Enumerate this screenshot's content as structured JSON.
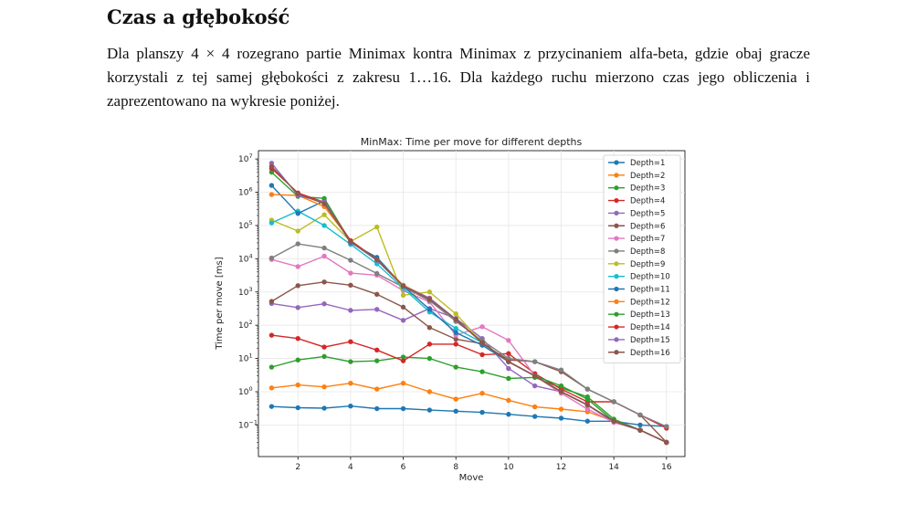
{
  "section": {
    "title": "Czas a głębokość",
    "paragraph": "Dla planszy 4 × 4 rozegrano partie Minimax kontra Minimax z przycinaniem alfa-beta, gdzie obaj gracze korzystali z tej samej głębokości z zakresu 1…16. Dla każdego ruchu mierzono czas jego obliczenia i zaprezentowano na wykresie poniżej."
  },
  "chart_data": {
    "type": "line",
    "title": "MinMax: Time per move for different depths",
    "xlabel": "Move",
    "ylabel": "Time per move [ms]",
    "yscale": "log",
    "xlim": [
      0.5,
      16.7
    ],
    "ylim_exp": [
      -1.95,
      7.25
    ],
    "xticks": [
      "2",
      "4",
      "6",
      "8",
      "10",
      "12",
      "14",
      "16"
    ],
    "yticks": [
      {
        "base": "10",
        "exp": "7"
      },
      {
        "base": "10",
        "exp": "6"
      },
      {
        "base": "10",
        "exp": "5"
      },
      {
        "base": "10",
        "exp": "4"
      },
      {
        "base": "10",
        "exp": "3"
      },
      {
        "base": "10",
        "exp": "2"
      },
      {
        "base": "10",
        "exp": "1"
      },
      {
        "base": "10",
        "exp": "0"
      },
      {
        "base": "10",
        "exp": "−1"
      }
    ],
    "grid": true,
    "legend_position": "top-right",
    "series": [
      {
        "name": "Depth=1",
        "color": "#1f77b4",
        "x": [
          1,
          2,
          3,
          4,
          5,
          6,
          7,
          8,
          9,
          10,
          11,
          12,
          13,
          14,
          15,
          16
        ],
        "y": [
          0.36,
          0.33,
          0.32,
          0.37,
          0.31,
          0.31,
          0.28,
          0.26,
          0.24,
          0.21,
          0.18,
          0.16,
          0.13,
          0.13,
          0.1,
          0.09
        ]
      },
      {
        "name": "Depth=2",
        "color": "#ff7f0e",
        "x": [
          1,
          2,
          3,
          4,
          5,
          6,
          7,
          8,
          9,
          10,
          11,
          12,
          13,
          14,
          15,
          16
        ],
        "y": [
          1.3,
          1.6,
          1.4,
          1.8,
          1.2,
          1.8,
          1.0,
          0.6,
          0.9,
          0.55,
          0.35,
          0.3,
          0.25,
          0.13,
          0.07,
          0.03
        ]
      },
      {
        "name": "Depth=3",
        "color": "#2ca02c",
        "x": [
          1,
          2,
          3,
          4,
          5,
          6,
          7,
          8,
          9,
          10,
          11,
          12,
          13,
          14,
          15,
          16
        ],
        "y": [
          5.5,
          9,
          11.5,
          8,
          8.5,
          11,
          10,
          5.5,
          4,
          2.5,
          2.7,
          1.3,
          0.7,
          0.15,
          0.07,
          0.03
        ]
      },
      {
        "name": "Depth=4",
        "color": "#d62728",
        "x": [
          1,
          2,
          3,
          4,
          5,
          6,
          7,
          8,
          9,
          10,
          11,
          12,
          13,
          14,
          15,
          16
        ],
        "y": [
          50,
          40,
          22,
          32,
          18,
          8.5,
          27,
          27,
          13,
          14,
          3.5,
          1.2,
          0.5,
          0.5,
          0.2,
          0.08
        ]
      },
      {
        "name": "Depth=5",
        "color": "#9467bd",
        "x": [
          1,
          2,
          3,
          4,
          5,
          6,
          7,
          8,
          9,
          10,
          11,
          12,
          13,
          14,
          15,
          16
        ],
        "y": [
          450,
          340,
          440,
          280,
          300,
          140,
          320,
          160,
          40,
          5,
          1.5,
          1,
          0.4,
          0.12,
          0.07,
          0.03
        ]
      },
      {
        "name": "Depth=6",
        "color": "#8c564b",
        "x": [
          1,
          2,
          3,
          4,
          5,
          6,
          7,
          8,
          9,
          10,
          11,
          12,
          13,
          14,
          15,
          16
        ],
        "y": [
          520,
          1550,
          2000,
          1600,
          850,
          350,
          85,
          38,
          28,
          9,
          8,
          4,
          1.2,
          0.5,
          0.2,
          0.03
        ]
      },
      {
        "name": "Depth=7",
        "color": "#e377c2",
        "x": [
          1,
          2,
          3,
          4,
          5,
          6,
          7,
          8,
          9,
          10,
          11,
          12,
          13,
          14,
          15,
          16
        ],
        "y": [
          9500,
          5800,
          12000,
          3700,
          3200,
          1100,
          500,
          50,
          90,
          35,
          3,
          0.9,
          0.3,
          0.12,
          0.07,
          0.03
        ]
      },
      {
        "name": "Depth=8",
        "color": "#7f7f7f",
        "x": [
          1,
          2,
          3,
          4,
          5,
          6,
          7,
          8,
          9,
          10,
          11,
          12,
          13,
          14,
          15,
          16
        ],
        "y": [
          10500,
          28000,
          21000,
          9000,
          3600,
          1400,
          550,
          130,
          35,
          10,
          8,
          4.5,
          1.2,
          0.5,
          0.2,
          0.09
        ]
      },
      {
        "name": "Depth=9",
        "color": "#bcbd22",
        "x": [
          1,
          2,
          3,
          4,
          5,
          6,
          7,
          8,
          9,
          10,
          11,
          12,
          13,
          14,
          15,
          16
        ],
        "y": [
          145000,
          68000,
          210000,
          33000,
          90000,
          800,
          1000,
          220,
          30,
          8,
          3,
          1,
          0.4,
          0.13,
          0.07,
          0.03
        ]
      },
      {
        "name": "Depth=10",
        "color": "#17becf",
        "x": [
          1,
          2,
          3,
          4,
          5,
          6,
          7,
          8,
          9,
          10,
          11,
          12,
          13,
          14,
          15,
          16
        ],
        "y": [
          120000,
          270000,
          100000,
          27000,
          7000,
          1300,
          250,
          80,
          30,
          8,
          3,
          1,
          0.4,
          0.13,
          0.07,
          0.03
        ]
      },
      {
        "name": "Depth=11",
        "color": "#1f77b4",
        "x": [
          1,
          2,
          3,
          4,
          5,
          6,
          7,
          8,
          9,
          10,
          11,
          12,
          13,
          14,
          15,
          16
        ],
        "y": [
          1600000,
          230000,
          550000,
          30000,
          11000,
          1500,
          300,
          60,
          25,
          8,
          3,
          1,
          0.4,
          0.13,
          0.07,
          0.03
        ]
      },
      {
        "name": "Depth=12",
        "color": "#ff7f0e",
        "x": [
          1,
          2,
          3,
          4,
          5,
          6,
          7,
          8,
          9,
          10,
          11,
          12,
          13,
          14,
          15,
          16
        ],
        "y": [
          850000,
          800000,
          370000,
          35000,
          9500,
          1600,
          650,
          150,
          30,
          8,
          3,
          1,
          0.4,
          0.13,
          0.07,
          0.03
        ]
      },
      {
        "name": "Depth=13",
        "color": "#2ca02c",
        "x": [
          1,
          2,
          3,
          4,
          5,
          6,
          7,
          8,
          9,
          10,
          11,
          12,
          13,
          14,
          15,
          16
        ],
        "y": [
          4000000,
          750000,
          650000,
          32000,
          9000,
          1500,
          650,
          150,
          30,
          8,
          3,
          1.5,
          0.6,
          0.13,
          0.07,
          0.03
        ]
      },
      {
        "name": "Depth=14",
        "color": "#d62728",
        "x": [
          1,
          2,
          3,
          4,
          5,
          6,
          7,
          8,
          9,
          10,
          11,
          12,
          13,
          14,
          15,
          16
        ],
        "y": [
          5200000,
          950000,
          500000,
          35000,
          9500,
          1500,
          650,
          150,
          30,
          8,
          3,
          1,
          0.4,
          0.13,
          0.07,
          0.03
        ]
      },
      {
        "name": "Depth=15",
        "color": "#9467bd",
        "x": [
          1,
          2,
          3,
          4,
          5,
          6,
          7,
          8,
          9,
          10,
          11,
          12,
          13,
          14,
          15,
          16
        ],
        "y": [
          7500000,
          800000,
          500000,
          32000,
          9000,
          1500,
          650,
          150,
          30,
          8,
          3,
          1,
          0.4,
          0.13,
          0.07,
          0.03
        ]
      },
      {
        "name": "Depth=16",
        "color": "#8c564b",
        "x": [
          1,
          2,
          3,
          4,
          5,
          6,
          7,
          8,
          9,
          10,
          11,
          12,
          13,
          14,
          15,
          16
        ],
        "y": [
          6000000,
          900000,
          450000,
          33000,
          9500,
          1500,
          600,
          150,
          30,
          8,
          3,
          1,
          0.4,
          0.13,
          0.07,
          0.03
        ]
      }
    ]
  }
}
